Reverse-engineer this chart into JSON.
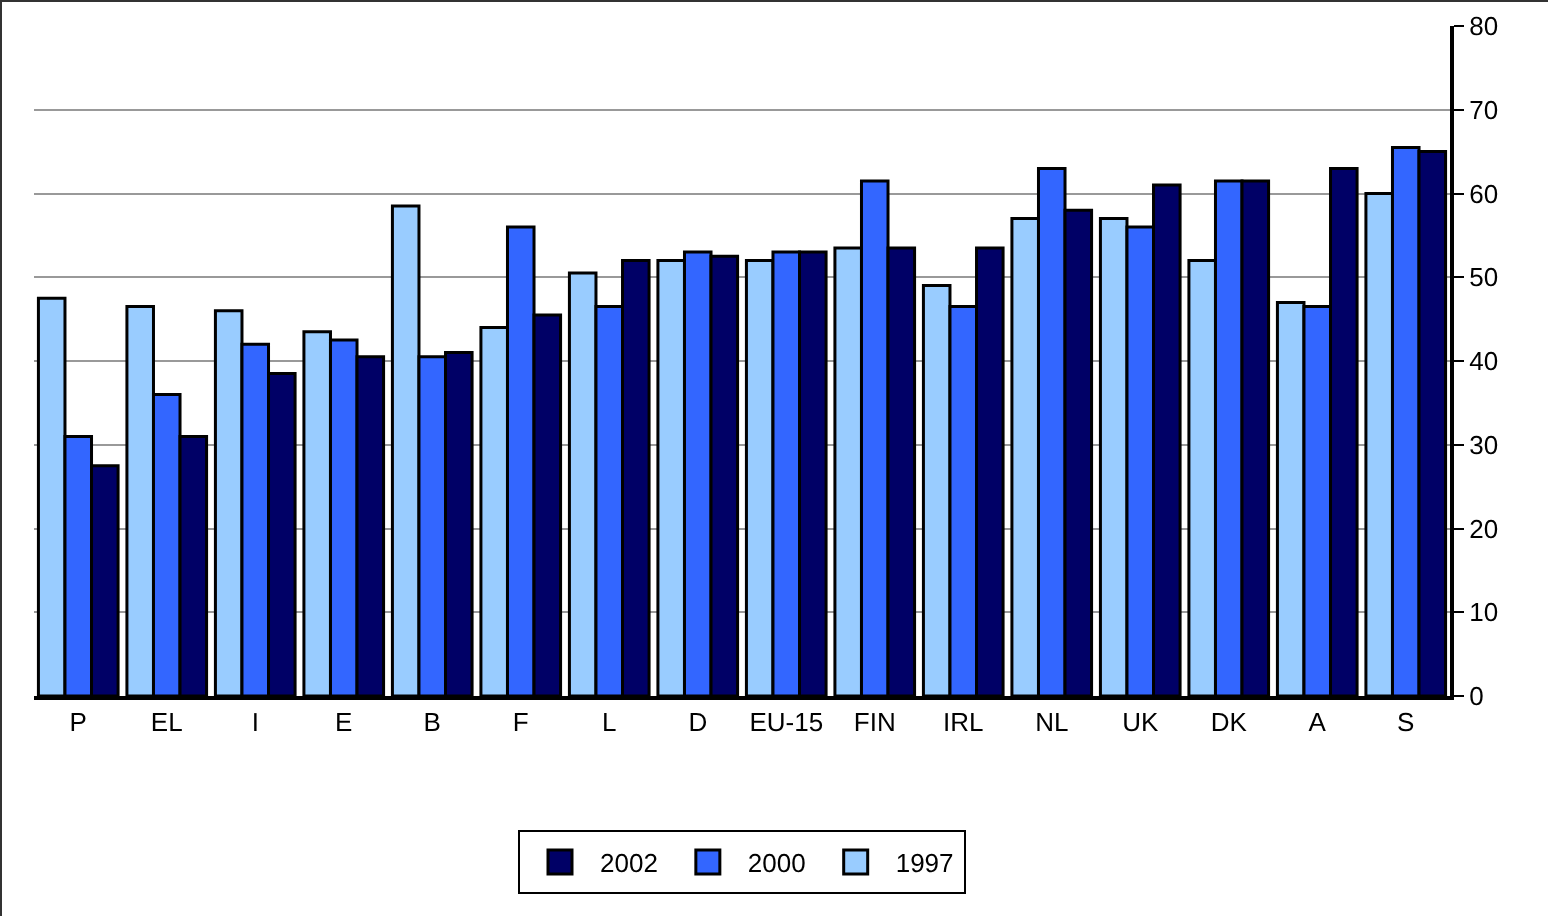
{
  "chart_data": {
    "type": "bar",
    "categories": [
      "P",
      "EL",
      "I",
      "E",
      "B",
      "F",
      "L",
      "D",
      "EU-15",
      "FIN",
      "IRL",
      "NL",
      "UK",
      "DK",
      "A",
      "S"
    ],
    "series": [
      {
        "name": "1997",
        "color": "#99ccff",
        "values": [
          47.5,
          46.5,
          46,
          43.5,
          58.5,
          44,
          50.5,
          52,
          52,
          53.5,
          49,
          57,
          57,
          52,
          47,
          60
        ]
      },
      {
        "name": "2000",
        "color": "#3366ff",
        "values": [
          31,
          36,
          42,
          42.5,
          40.5,
          56,
          46.5,
          53,
          53,
          61.5,
          46.5,
          63,
          56,
          61.5,
          46.5,
          65.5
        ]
      },
      {
        "name": "2002",
        "color": "#000066",
        "values": [
          27.5,
          31,
          38.5,
          40.5,
          41,
          45.5,
          52,
          52.5,
          53,
          53.5,
          53.5,
          58,
          61,
          61.5,
          63,
          65
        ]
      }
    ],
    "ylim": [
      0,
      80
    ],
    "yticks": [
      0,
      10,
      20,
      30,
      40,
      50,
      60,
      70,
      80
    ],
    "grid": "y",
    "legend": "bottom"
  }
}
